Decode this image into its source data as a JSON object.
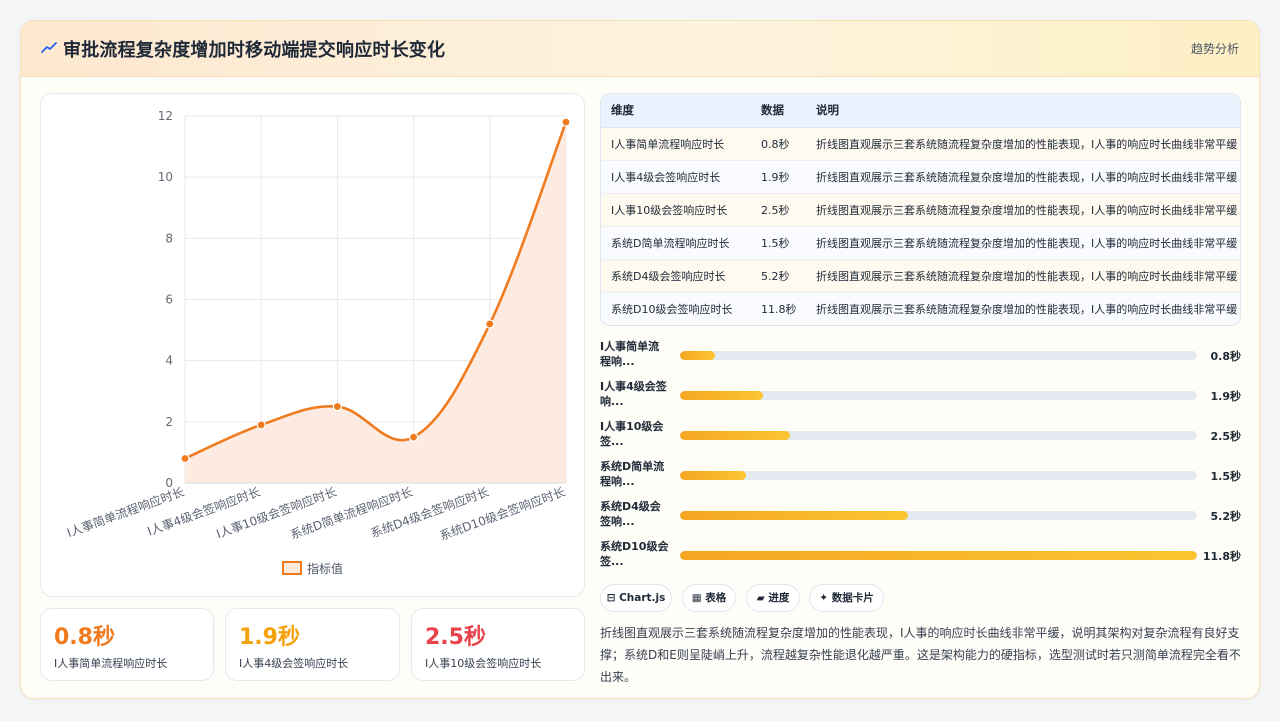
{
  "header": {
    "title": "审批流程复杂度增加时移动端提交响应时长变化",
    "tag": "趋势分析",
    "icon": "trend-icon"
  },
  "colors": {
    "line": "#f07b1f",
    "area": "#fde8dc",
    "stat1": "#f07b1f",
    "stat2": "#f5a20a",
    "stat3": "#e8424a"
  },
  "chart_data": {
    "type": "line",
    "categories": [
      "I人事简单流程响应时长",
      "I人事4级会签响应时长",
      "I人事10级会签响应时长",
      "系统D简单流程响应时长",
      "系统D4级会签响应时长",
      "系统D10级会签响应时长"
    ],
    "series": [
      {
        "name": "指标值",
        "values": [
          0.8,
          1.9,
          2.5,
          1.5,
          5.2,
          11.8
        ]
      }
    ],
    "ylim": [
      0,
      12
    ],
    "yticks": [
      "0",
      "2",
      "4",
      "6",
      "8",
      "10",
      "12"
    ],
    "grid": true,
    "legend_position": "bottom",
    "fill": true
  },
  "stats": [
    {
      "value": "0.8秒",
      "label": "I人事简单流程响应时长"
    },
    {
      "value": "1.9秒",
      "label": "I人事4级会签响应时长"
    },
    {
      "value": "2.5秒",
      "label": "I人事10级会签响应时长"
    }
  ],
  "table": {
    "headers": [
      "维度",
      "数据",
      "说明"
    ],
    "rows": [
      {
        "dim": "I人事简单流程响应时长",
        "val": "0.8秒",
        "note": "折线图直观展示三套系统随流程复杂度增加的性能表现，I人事的响应时长曲线非常平缓"
      },
      {
        "dim": "I人事4级会签响应时长",
        "val": "1.9秒",
        "note": "折线图直观展示三套系统随流程复杂度增加的性能表现，I人事的响应时长曲线非常平缓"
      },
      {
        "dim": "I人事10级会签响应时长",
        "val": "2.5秒",
        "note": "折线图直观展示三套系统随流程复杂度增加的性能表现，I人事的响应时长曲线非常平缓"
      },
      {
        "dim": "系统D简单流程响应时长",
        "val": "1.5秒",
        "note": "折线图直观展示三套系统随流程复杂度增加的性能表现，I人事的响应时长曲线非常平缓"
      },
      {
        "dim": "系统D4级会签响应时长",
        "val": "5.2秒",
        "note": "折线图直观展示三套系统随流程复杂度增加的性能表现，I人事的响应时长曲线非常平缓"
      },
      {
        "dim": "系统D10级会签响应时长",
        "val": "11.8秒",
        "note": "折线图直观展示三套系统随流程复杂度增加的性能表现，I人事的响应时长曲线非常平缓"
      }
    ]
  },
  "progress": [
    {
      "label": "I人事简单流\n程响...",
      "value": "0.8秒",
      "fraction": 0.0678
    },
    {
      "label": "I人事4级会签\n响...",
      "value": "1.9秒",
      "fraction": 0.161
    },
    {
      "label": "I人事10级会\n签...",
      "value": "2.5秒",
      "fraction": 0.212
    },
    {
      "label": "系统D简单流\n程响...",
      "value": "1.5秒",
      "fraction": 0.127
    },
    {
      "label": "系统D4级会\n签响...",
      "value": "5.2秒",
      "fraction": 0.441
    },
    {
      "label": "系统D10级会\n签...",
      "value": "11.8秒",
      "fraction": 1.0
    }
  ],
  "pills": [
    {
      "label": "⊟ Chart.js"
    },
    {
      "label": "▦ 表格"
    },
    {
      "label": "▰ 进度"
    },
    {
      "label": "✦ 数据卡片"
    }
  ],
  "description": "折线图直观展示三套系统随流程复杂度增加的性能表现，I人事的响应时长曲线非常平缓，说明其架构对复杂流程有良好支撑；系统D和E则呈陡峭上升，流程越复杂性能退化越严重。这是架构能力的硬指标，选型测试时若只测简单流程完全看不出来。"
}
